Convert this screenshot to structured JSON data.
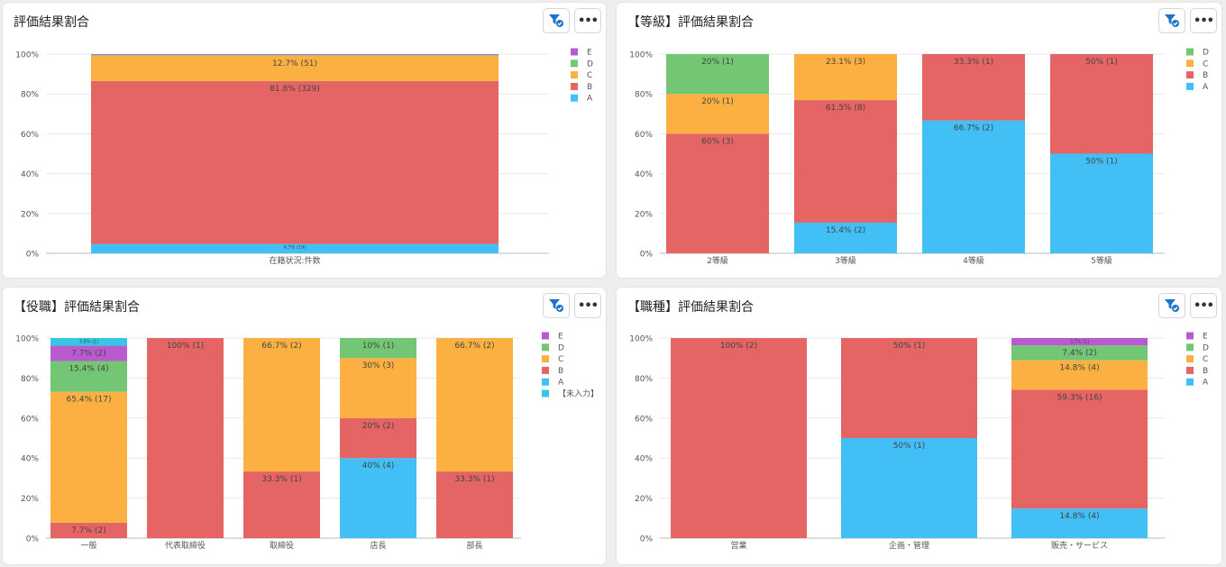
{
  "colors": {
    "A": "#42bff5",
    "B": "#e56464",
    "C": "#fdb042",
    "D": "#73c774",
    "E": "#b85bce",
    "未入力": "#35c7e5",
    "grid": "#e8e8e8",
    "axis": "#bbbbbb",
    "label": "#444444",
    "tick": "#555555"
  },
  "buttons": {
    "filter_icon": "filter-check-icon",
    "more_label": "•••"
  },
  "y_ticks": [
    "0%",
    "20%",
    "40%",
    "60%",
    "80%",
    "100%"
  ],
  "chart_data": [
    {
      "id": "p1",
      "type": "bar",
      "stacked": true,
      "title": "評価結果割合",
      "categories": [
        "在籍状況:件数"
      ],
      "legend": [
        "E",
        "D",
        "C",
        "B",
        "A"
      ],
      "ylim": [
        0,
        100
      ],
      "segments": [
        [
          {
            "key": "A",
            "value": 4.7,
            "label": "4.7% (19)",
            "small": true
          },
          {
            "key": "B",
            "value": 81.8,
            "label": "81.8% (329)"
          },
          {
            "key": "C",
            "value": 12.7,
            "label": "12.7% (51)"
          },
          {
            "key": "D",
            "value": 0.5,
            "label": ""
          },
          {
            "key": "E",
            "value": 0.3,
            "label": ""
          }
        ]
      ]
    },
    {
      "id": "p2",
      "type": "bar",
      "stacked": true,
      "title": "【等級】評価結果割合",
      "categories": [
        "2等級",
        "3等級",
        "4等級",
        "5等級"
      ],
      "legend": [
        "D",
        "C",
        "B",
        "A"
      ],
      "ylim": [
        0,
        100
      ],
      "segments": [
        [
          {
            "key": "B",
            "value": 60,
            "label": "60% (3)"
          },
          {
            "key": "C",
            "value": 20,
            "label": "20% (1)"
          },
          {
            "key": "D",
            "value": 20,
            "label": "20% (1)"
          }
        ],
        [
          {
            "key": "A",
            "value": 15.4,
            "label": "15.4% (2)"
          },
          {
            "key": "B",
            "value": 61.5,
            "label": "61.5% (8)"
          },
          {
            "key": "C",
            "value": 23.1,
            "label": "23.1% (3)"
          }
        ],
        [
          {
            "key": "A",
            "value": 66.7,
            "label": "66.7% (2)"
          },
          {
            "key": "B",
            "value": 33.3,
            "label": "33.3% (1)"
          }
        ],
        [
          {
            "key": "A",
            "value": 50,
            "label": "50% (1)"
          },
          {
            "key": "B",
            "value": 50,
            "label": "50% (1)"
          }
        ]
      ]
    },
    {
      "id": "p3",
      "type": "bar",
      "stacked": true,
      "title": "【役職】評価結果割合",
      "categories": [
        "一般",
        "代表取締役",
        "取締役",
        "店長",
        "部長"
      ],
      "legend": [
        "E",
        "D",
        "C",
        "B",
        "A",
        "【未入力】"
      ],
      "legend_keys": [
        "E",
        "D",
        "C",
        "B",
        "A",
        "未入力"
      ],
      "ylim": [
        0,
        100
      ],
      "segments": [
        [
          {
            "key": "B",
            "value": 7.7,
            "label": "7.7% (2)"
          },
          {
            "key": "C",
            "value": 65.4,
            "label": "65.4% (17)"
          },
          {
            "key": "D",
            "value": 15.4,
            "label": "15.4% (4)"
          },
          {
            "key": "E",
            "value": 7.7,
            "label": "7.7% (2)"
          },
          {
            "key": "未入力",
            "value": 3.8,
            "label": "3.8% (1)",
            "small": true
          }
        ],
        [
          {
            "key": "B",
            "value": 100,
            "label": "100% (1)"
          }
        ],
        [
          {
            "key": "B",
            "value": 33.3,
            "label": "33.3% (1)"
          },
          {
            "key": "C",
            "value": 66.7,
            "label": "66.7% (2)"
          }
        ],
        [
          {
            "key": "A",
            "value": 40,
            "label": "40% (4)"
          },
          {
            "key": "B",
            "value": 20,
            "label": "20% (2)"
          },
          {
            "key": "C",
            "value": 30,
            "label": "30% (3)"
          },
          {
            "key": "D",
            "value": 10,
            "label": "10% (1)"
          }
        ],
        [
          {
            "key": "B",
            "value": 33.3,
            "label": "33.3% (1)"
          },
          {
            "key": "C",
            "value": 66.7,
            "label": "66.7% (2)"
          }
        ]
      ]
    },
    {
      "id": "p4",
      "type": "bar",
      "stacked": true,
      "title": "【職種】評価結果割合",
      "categories": [
        "営業",
        "企画・管理",
        "販売・サービス"
      ],
      "legend": [
        "E",
        "D",
        "C",
        "B",
        "A"
      ],
      "ylim": [
        0,
        100
      ],
      "segments": [
        [
          {
            "key": "B",
            "value": 100,
            "label": "100% (2)"
          }
        ],
        [
          {
            "key": "A",
            "value": 50,
            "label": "50% (1)"
          },
          {
            "key": "B",
            "value": 50,
            "label": "50% (1)"
          }
        ],
        [
          {
            "key": "A",
            "value": 14.8,
            "label": "14.8% (4)"
          },
          {
            "key": "B",
            "value": 59.3,
            "label": "59.3% (16)"
          },
          {
            "key": "C",
            "value": 14.8,
            "label": "14.8% (4)"
          },
          {
            "key": "D",
            "value": 7.4,
            "label": "7.4% (2)"
          },
          {
            "key": "E",
            "value": 3.7,
            "label": "3.7% (1)",
            "small": true
          }
        ]
      ]
    }
  ]
}
